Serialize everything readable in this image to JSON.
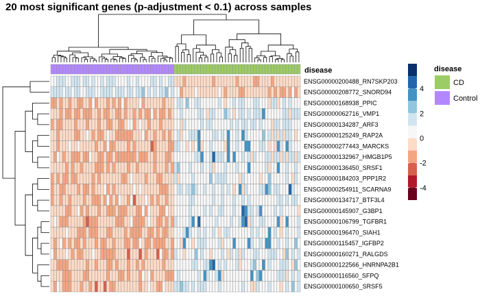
{
  "title": "20 most significant genes (p-adjustment < 0.1) across samples",
  "annotation": {
    "row_label": "disease",
    "legend_title": "disease",
    "groups": [
      {
        "name": "CD",
        "color": "#9ccc65",
        "count": 43
      },
      {
        "name": "Control",
        "color": "#b388ff",
        "count": 42
      }
    ]
  },
  "colors": {
    "high": "#08306b",
    "mid": "#f7f7f7",
    "low": "#67001f",
    "grid": "#8c8c8c"
  },
  "color_legend": {
    "ticks": [
      "4",
      "2",
      "0",
      "-2",
      "-4"
    ],
    "bins": [
      {
        "from": 5,
        "to": 6,
        "color": "#08306b"
      },
      {
        "from": 4,
        "to": 5,
        "color": "#2166ac"
      },
      {
        "from": 3,
        "to": 4,
        "color": "#4393c3"
      },
      {
        "from": 2,
        "to": 3,
        "color": "#92c5de"
      },
      {
        "from": 1,
        "to": 2,
        "color": "#d1e5f0"
      },
      {
        "from": 0,
        "to": 1,
        "color": "#f7f7f7"
      },
      {
        "from": -1,
        "to": 0,
        "color": "#fddbc7"
      },
      {
        "from": -2,
        "to": -1,
        "color": "#f4a582"
      },
      {
        "from": -3,
        "to": -2,
        "color": "#d6604d"
      },
      {
        "from": -4,
        "to": -3,
        "color": "#b2182b"
      },
      {
        "from": -5,
        "to": -4,
        "color": "#67001f"
      }
    ]
  },
  "chart_data": {
    "type": "heatmap",
    "title": "20 most significant genes (p-adjustment < 0.1) across samples",
    "rows": [
      "ENSG00000200488_RN7SKP203",
      "ENSG00000208772_SNORD94",
      "ENSG00000168938_PPIC",
      "ENSG00000062716_VMP1",
      "ENSG00000134287_ARF3",
      "ENSG00000125249_RAP2A",
      "ENSG00000277443_MARCKS",
      "ENSG00000132967_HMGB1P5",
      "ENSG00000136450_SRSF1",
      "ENSG00000184203_PPP1R2",
      "ENSG00000254911_SCARNA9",
      "ENSG00000134717_BTF3L4",
      "ENSG00000145907_G3BP1",
      "ENSG00000106799_TGFBR1",
      "ENSG00000196470_SIAH1",
      "ENSG00000115457_IGFBP2",
      "ENSG00000160271_RALGDS",
      "ENSG00000122566_HNRNPA2B1",
      "ENSG00000116560_SFPQ",
      "ENSG00000100650_SRSF5"
    ],
    "n_columns": 85,
    "column_groups": [
      {
        "name": "Control",
        "from": 0,
        "to": 42
      },
      {
        "name": "CD",
        "from": 42,
        "to": 85
      }
    ],
    "value_range": [
      -5,
      6
    ],
    "group_means": {
      "row_0": {
        "Control": 1.0,
        "CD": -0.7
      },
      "row_1": {
        "Control": 1.3,
        "CD": -0.6
      },
      "rows_2_19": {
        "Control": -0.7,
        "CD": 0.7
      }
    },
    "legend_ticks": [
      4,
      2,
      0,
      -2,
      -4
    ]
  }
}
